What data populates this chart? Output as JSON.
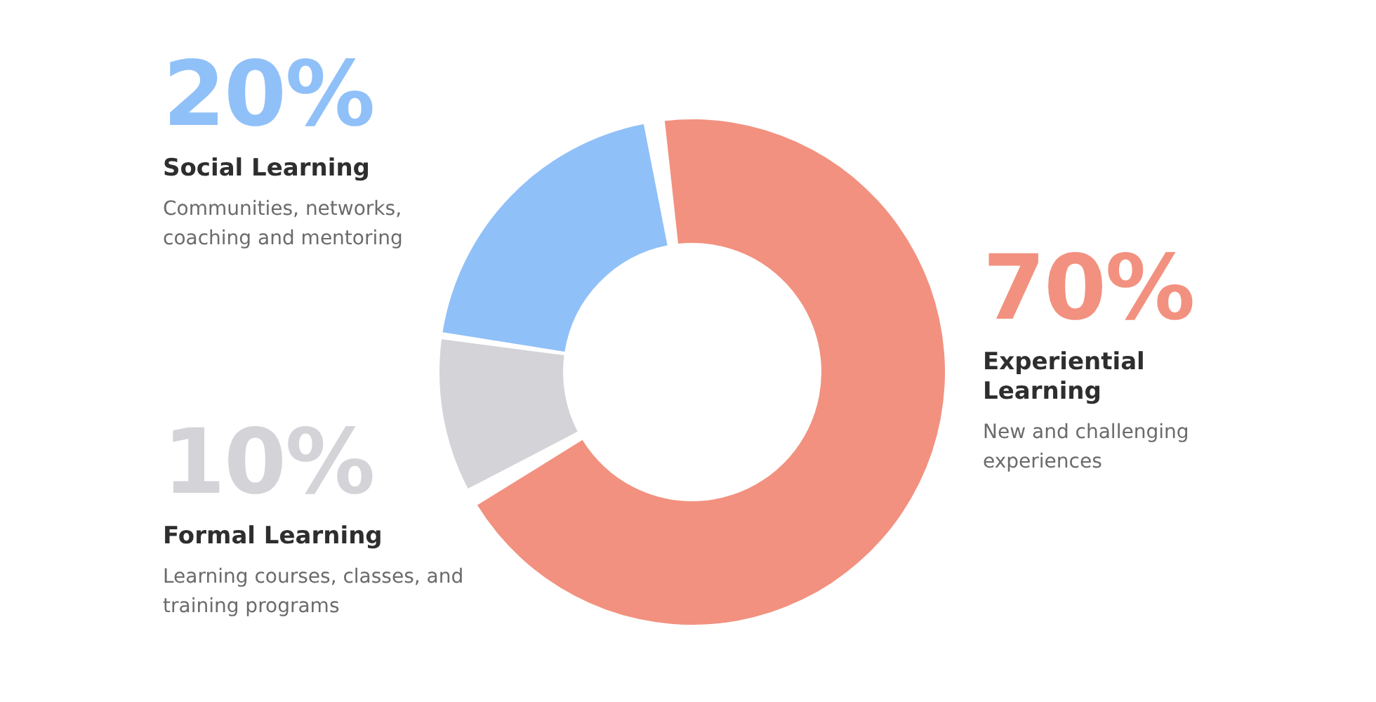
{
  "chart_data": {
    "type": "donut",
    "categories": [
      "Experiential Learning",
      "Formal Learning",
      "Social Learning"
    ],
    "values": [
      70,
      10,
      20
    ],
    "colors": [
      "#f2917f",
      "#d3d3d8",
      "#90c0f8"
    ],
    "value_labels": [
      "70%",
      "10%",
      "20%"
    ],
    "annotations": [
      "New and challenging experiences",
      "Learning courses, classes, and training programs",
      "Communities, networks, coaching and mentoring"
    ],
    "legend": false
  }
}
